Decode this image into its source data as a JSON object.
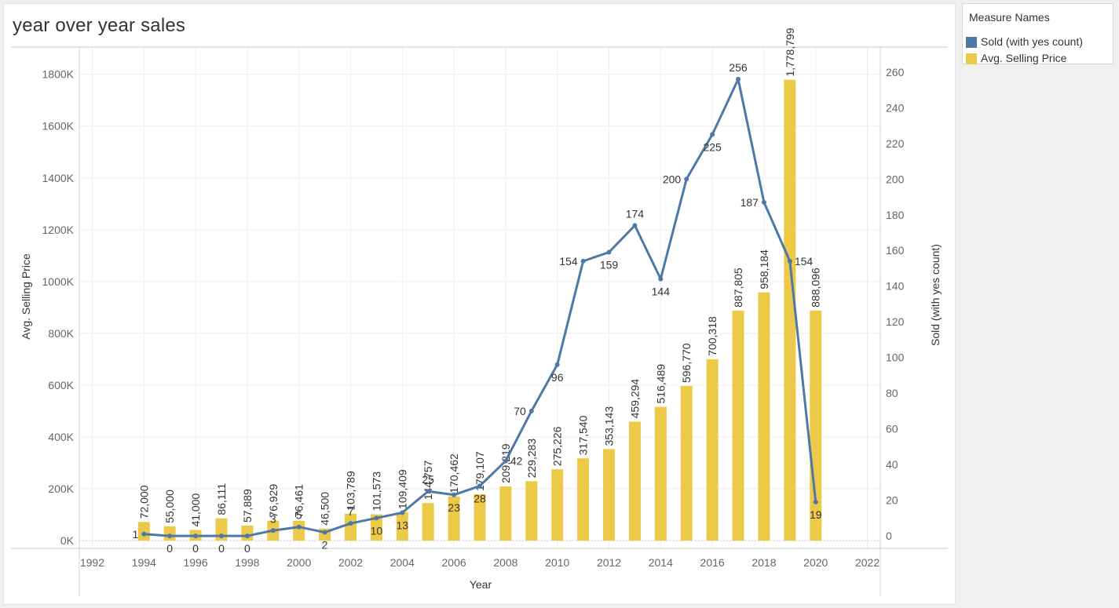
{
  "title": "year over year sales",
  "legend": {
    "title": "Measure Names",
    "items": [
      {
        "label": "Sold (with yes count)",
        "color": "#4e79a7"
      },
      {
        "label": "Avg. Selling Price",
        "color": "#edc948"
      }
    ]
  },
  "chart_data": {
    "type": "bar",
    "title": "year over year sales",
    "xlabel": "Year",
    "ylabel": "Avg. Selling Price",
    "y2label": "Sold (with yes count)",
    "xlim": [
      1991.5,
      2022.5
    ],
    "ylim": [
      -30000,
      1905000
    ],
    "y2lim": [
      -7,
      274
    ],
    "x_ticks": [
      "1992",
      "1994",
      "1996",
      "1998",
      "2000",
      "2002",
      "2004",
      "2006",
      "2008",
      "2010",
      "2012",
      "2014",
      "2016",
      "2018",
      "2020",
      "2022"
    ],
    "y_ticks": [
      "0K",
      "200K",
      "400K",
      "600K",
      "800K",
      "1000K",
      "1200K",
      "1400K",
      "1600K",
      "1800K"
    ],
    "y2_ticks": [
      "0",
      "20",
      "40",
      "60",
      "80",
      "100",
      "120",
      "140",
      "160",
      "180",
      "200",
      "220",
      "240",
      "260"
    ],
    "grid": true,
    "legend_position": "right",
    "series": [
      {
        "name": "Avg. Selling Price",
        "type": "bar",
        "axis": "left",
        "color": "#edc948",
        "x": [
          1994,
          1995,
          1996,
          1997,
          1998,
          1999,
          2000,
          2001,
          2002,
          2003,
          2004,
          2005,
          2006,
          2007,
          2008,
          2009,
          2010,
          2011,
          2012,
          2013,
          2014,
          2015,
          2016,
          2017,
          2018,
          2019,
          2020
        ],
        "values": [
          72000,
          55000,
          41000,
          86111,
          57889,
          76929,
          76461,
          46500,
          103789,
          101573,
          109409,
          144757,
          170462,
          179107,
          209219,
          229283,
          275226,
          317540,
          353143,
          459294,
          516489,
          596770,
          700318,
          887805,
          958184,
          1778799,
          888096
        ],
        "labels": [
          "72,000",
          "55,000",
          "41,000",
          "86,111",
          "57,889",
          "76,929",
          "76,461",
          "46,500",
          "103,789",
          "101,573",
          "109,409",
          "144,757",
          "170,462",
          "179,107",
          "209,219",
          "229,283",
          "275,226",
          "317,540",
          "353,143",
          "459,294",
          "516,489",
          "596,770",
          "700,318",
          "887,805",
          "958,184",
          "1,778,799",
          "888,096"
        ]
      },
      {
        "name": "Sold (with yes count)",
        "type": "line",
        "axis": "right",
        "color": "#4e79a7",
        "x": [
          1994,
          1995,
          1996,
          1997,
          1998,
          1999,
          2000,
          2001,
          2002,
          2003,
          2004,
          2005,
          2006,
          2007,
          2008,
          2009,
          2010,
          2011,
          2012,
          2013,
          2014,
          2015,
          2016,
          2017,
          2018,
          2019,
          2020
        ],
        "values": [
          1,
          0,
          0,
          0,
          0,
          3,
          5,
          2,
          7,
          10,
          13,
          25,
          23,
          28,
          42,
          70,
          96,
          154,
          159,
          174,
          144,
          200,
          225,
          256,
          187,
          154,
          19
        ],
        "labels": [
          "1",
          "0",
          "0",
          "0",
          "0",
          "3",
          "5",
          "2",
          "7",
          "10",
          "13",
          "25",
          "23",
          "28",
          "42",
          "70",
          "96",
          "154",
          "159",
          "174",
          "144",
          "200",
          "225",
          "256",
          "187",
          "154",
          "19"
        ],
        "label_position": [
          "left",
          "below",
          "below",
          "below",
          "below",
          "above",
          "above",
          "below",
          "above",
          "below",
          "below",
          "above",
          "below",
          "below",
          "right",
          "left",
          "below",
          "left",
          "below",
          "above",
          "below",
          "left",
          "below",
          "above",
          "left",
          "right",
          "below"
        ]
      }
    ]
  }
}
